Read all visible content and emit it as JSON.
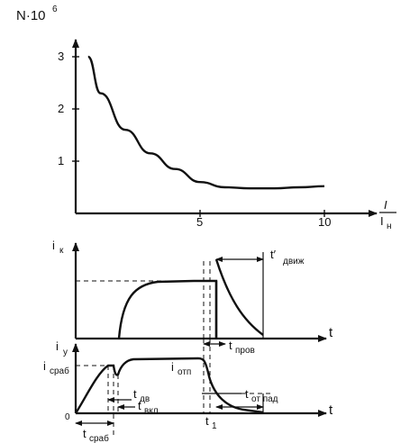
{
  "chart_data": {
    "type": "line",
    "ylabel": "N·10",
    "ylabel_exp": "6",
    "xlabel_num": "I",
    "xlabel_den": "I",
    "xlabel_den_sub": "н",
    "x_ticks": [
      "5",
      "10"
    ],
    "y_ticks": [
      "1",
      "2",
      "3"
    ],
    "series": [
      {
        "x": [
          0.5,
          1.0,
          2.0,
          3.0,
          4.0,
          5.0,
          6.0,
          7.0,
          8.0,
          9.0,
          10.0
        ],
        "y": [
          3.0,
          2.3,
          1.6,
          1.15,
          0.85,
          0.6,
          0.5,
          0.48,
          0.48,
          0.5,
          0.52
        ]
      }
    ]
  },
  "diagram": {
    "ik_label": "i",
    "ik_sub": "к",
    "iy_label": "i",
    "iy_sub": "у",
    "t_label_top": "t",
    "t_label_bottom": "t",
    "t_dvizh": "t′",
    "t_dvizh_sub": "движ",
    "t_prov": "t",
    "t_prov_sub": "пров",
    "i_srab": "i",
    "i_srab_sub": "сраб",
    "i_otp": "i",
    "i_otp_sub": "отп",
    "t_dv": "t",
    "t_dv_sub": "дв",
    "t_vkl": "t",
    "t_vkl_sub": "вкл",
    "t_otpad": "t",
    "t_otpad_sub": "от пад",
    "t1": "t",
    "t1_sub": "1",
    "t_srab": "t",
    "t_srab_sub": "сраб",
    "zero": "0"
  }
}
